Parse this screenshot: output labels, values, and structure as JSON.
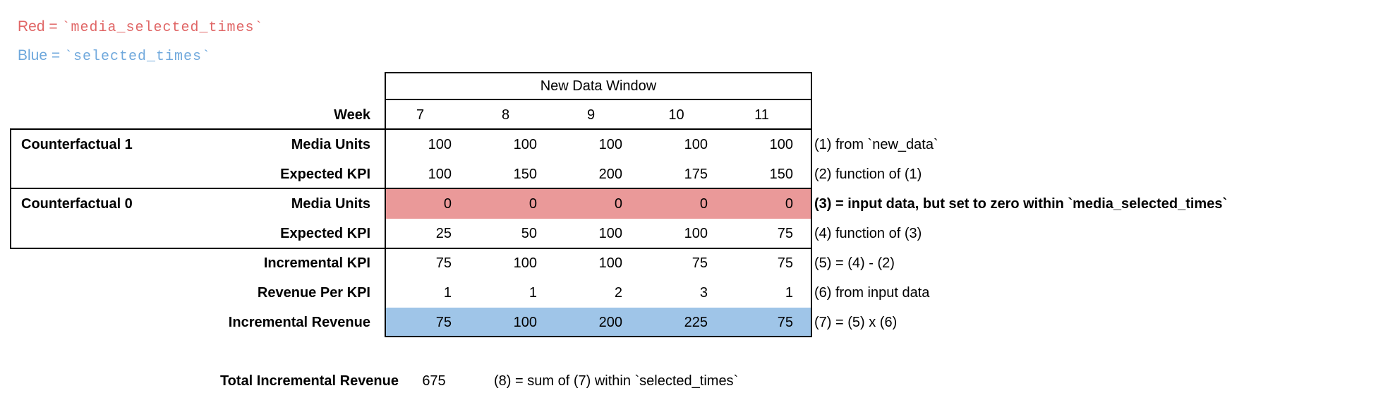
{
  "legend": {
    "red_prefix": "Red = ",
    "red_code": "`media_selected_times`",
    "blue_prefix": "Blue = ",
    "blue_code": "`selected_times`",
    "red_text_color": "#e06666",
    "blue_text_color": "#6fa8dc"
  },
  "table": {
    "header": "New Data Window",
    "week_label": "Week",
    "weeks": [
      7,
      8,
      9,
      10,
      11
    ],
    "red_highlight_color": "#ea9999",
    "blue_highlight_color": "#9fc5e8",
    "rows": [
      {
        "section": "Counterfactual 1",
        "label": "Media Units",
        "values": [
          100,
          100,
          100,
          100,
          100
        ],
        "annotation": "(1) from `new_data`"
      },
      {
        "section": "",
        "label": "Expected KPI",
        "values": [
          100,
          150,
          200,
          175,
          150
        ],
        "annotation": "(2) function of (1)"
      },
      {
        "section": "Counterfactual 0",
        "label": "Media Units",
        "values": [
          0,
          0,
          0,
          0,
          0
        ],
        "annotation": "(3) = input data, but set to zero within `media_selected_times`",
        "highlight": "red"
      },
      {
        "section": "",
        "label": "Expected KPI",
        "values": [
          25,
          50,
          100,
          100,
          75
        ],
        "annotation": "(4) function of (3)"
      },
      {
        "section": "",
        "label": "Incremental KPI",
        "values": [
          75,
          100,
          100,
          75,
          75
        ],
        "annotation": "(5) = (4) - (2)"
      },
      {
        "section": "",
        "label": "Revenue Per KPI",
        "values": [
          1,
          1,
          2,
          3,
          1
        ],
        "annotation": "(6) from input data"
      },
      {
        "section": "",
        "label": "Incremental Revenue",
        "values": [
          75,
          100,
          200,
          225,
          75
        ],
        "annotation": "(7) = (5) x (6)",
        "highlight": "blue"
      }
    ]
  },
  "total": {
    "label": "Total Incremental Revenue",
    "value": 675,
    "annotation": "(8) = sum of (7) within `selected_times`"
  }
}
